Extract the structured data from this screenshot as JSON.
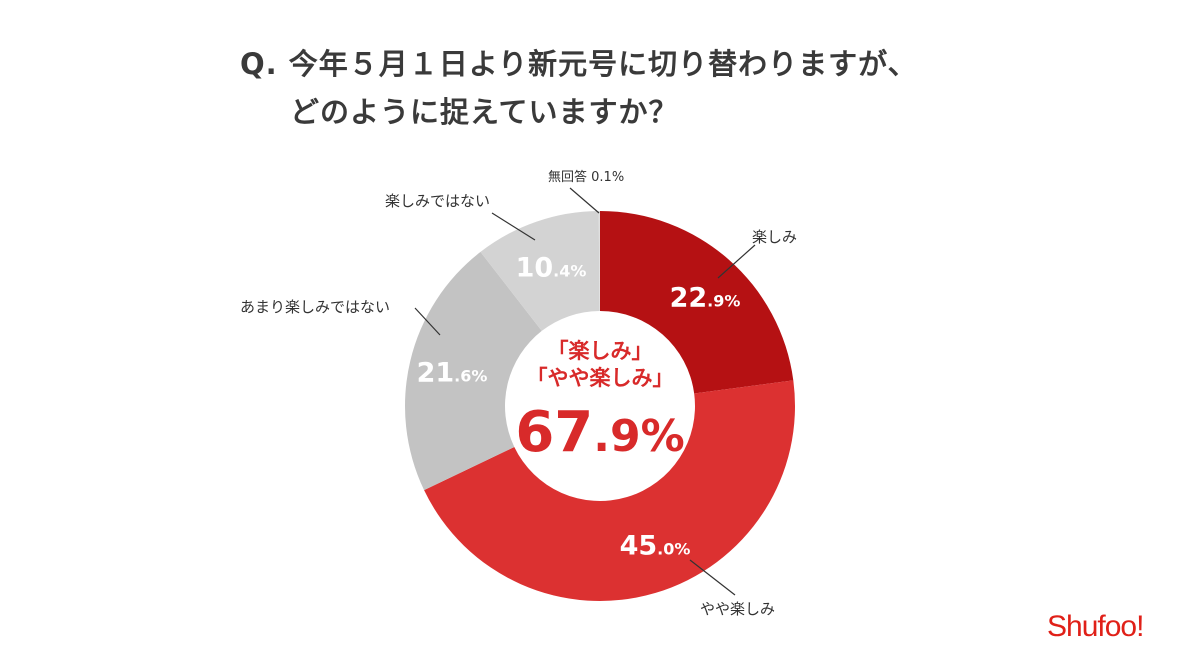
{
  "title_line1": "Q. 今年５月１日より新元号に切り替わりますが、",
  "title_line2": "どのように捉えていますか？",
  "chart_data": {
    "type": "pie",
    "donut": true,
    "categories": [
      "楽しみ",
      "やや楽しみ",
      "あまり楽しみではない",
      "楽しみではない",
      "無回答"
    ],
    "values": [
      22.9,
      45.0,
      21.6,
      10.4,
      0.1
    ],
    "unit": "%",
    "colors": [
      "#b51113",
      "#dc3131",
      "#c3c3c3",
      "#d3d3d3",
      "#e0e0e0"
    ],
    "start": "top",
    "direction": "clockwise",
    "center_annotation": {
      "line1": "「楽しみ」",
      "line2": "「やや楽しみ」",
      "total_major": "67",
      "total_minor": ".9%"
    }
  },
  "no_answer_label": "無回答",
  "no_answer_value": "0.1%",
  "brand": "Shufoo!"
}
